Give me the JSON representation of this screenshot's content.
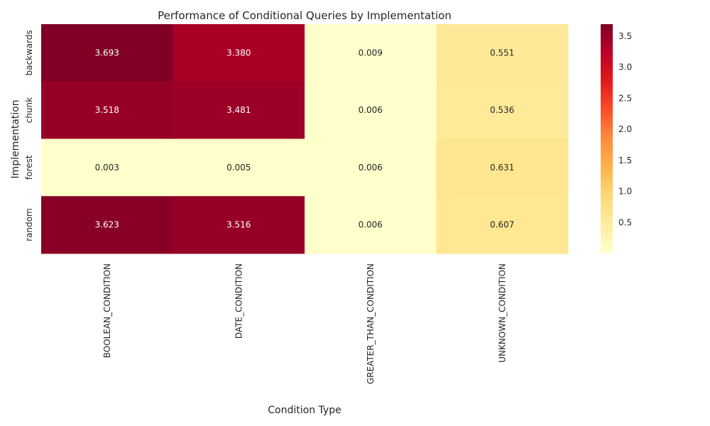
{
  "chart_data": {
    "type": "heatmap",
    "title": "Performance of Conditional Queries by Implementation",
    "xlabel": "Condition Type",
    "ylabel": "Implementation",
    "x_categories": [
      "BOOLEAN_CONDITION",
      "DATE_CONDITION",
      "GREATER_THAN_CONDITION",
      "UNKNOWN_CONDITION"
    ],
    "y_categories": [
      "backwards",
      "chunk",
      "forest",
      "random"
    ],
    "values": [
      [
        3.693,
        3.38,
        0.009,
        0.551
      ],
      [
        3.518,
        3.481,
        0.006,
        0.536
      ],
      [
        0.003,
        0.005,
        0.006,
        0.631
      ],
      [
        3.623,
        3.516,
        0.006,
        0.607
      ]
    ],
    "value_labels": [
      [
        "3.693",
        "3.380",
        "0.009",
        "0.551"
      ],
      [
        "3.518",
        "3.481",
        "0.006",
        "0.536"
      ],
      [
        "0.003",
        "0.005",
        "0.006",
        "0.631"
      ],
      [
        "3.623",
        "3.516",
        "0.006",
        "0.607"
      ]
    ],
    "colormap": "YlOrRd",
    "color_range": [
      0.003,
      3.693
    ],
    "colorbar_ticks": [
      0.5,
      1.0,
      1.5,
      2.0,
      2.5,
      3.0,
      3.5
    ],
    "colorbar_tick_labels": [
      "0.5",
      "1.0",
      "1.5",
      "2.0",
      "2.5",
      "3.0",
      "3.5"
    ],
    "colorbar_stops": [
      "#ffffcc",
      "#ffeda0",
      "#fed976",
      "#feb24c",
      "#fd8d3c",
      "#fc4e2a",
      "#e31a1c",
      "#bd0026",
      "#800026"
    ],
    "grid": false
  }
}
